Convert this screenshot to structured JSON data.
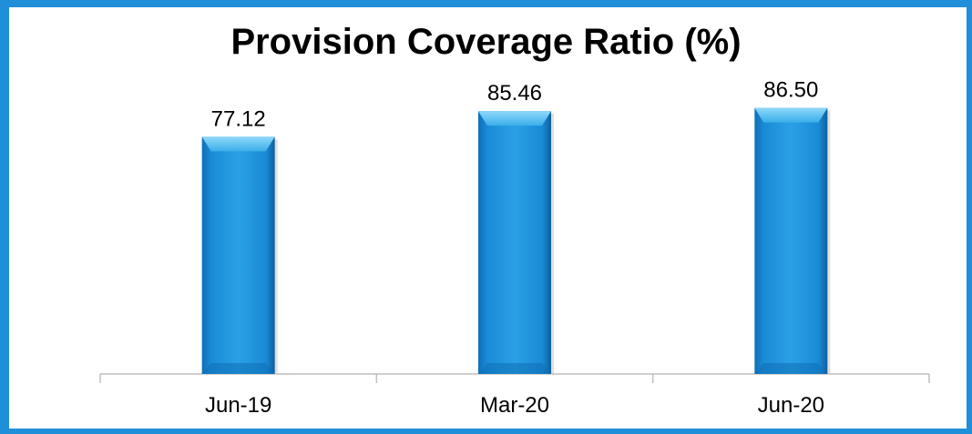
{
  "chart_data": {
    "type": "bar",
    "title": "Provision Coverage Ratio (%)",
    "categories": [
      "Jun-19",
      "Mar-20",
      "Jun-20"
    ],
    "values": [
      77.12,
      85.46,
      86.5
    ],
    "value_labels": [
      "77.12",
      "85.46",
      "86.50"
    ],
    "ylim": [
      0,
      100
    ],
    "grid": false,
    "legend": "none",
    "colors": {
      "bar": "#1a8ad6",
      "bar_light": "#5fc0f2",
      "bar_dark": "#0d5f9e",
      "frame": "#1e8fd8",
      "axis": "#bfbfbf"
    }
  }
}
